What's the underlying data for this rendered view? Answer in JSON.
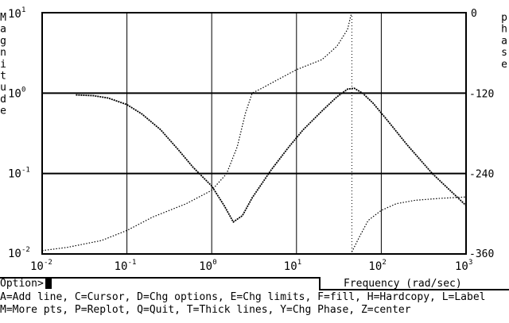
{
  "chart_data": {
    "type": "line",
    "x_scale": "log",
    "xlim": [
      0.01,
      1000
    ],
    "ylim_magnitude": [
      0.01,
      10
    ],
    "y_scale_magnitude": "log",
    "ylim_phase": [
      -360,
      0
    ],
    "xlabel": "Frequency (rad/sec)",
    "ylabel_left": "Magnitude",
    "ylabel_right": "phase",
    "x_ticks": [
      {
        "value": 0.01,
        "base": "10",
        "exp": "-2"
      },
      {
        "value": 0.1,
        "base": "10",
        "exp": "-1"
      },
      {
        "value": 1,
        "base": "10",
        "exp": "0"
      },
      {
        "value": 10,
        "base": "10",
        "exp": "1"
      },
      {
        "value": 100,
        "base": "10",
        "exp": "2"
      },
      {
        "value": 1000,
        "base": "10",
        "exp": "3"
      }
    ],
    "y_ticks_magnitude": [
      {
        "value": 10,
        "base": "10",
        "exp": "1"
      },
      {
        "value": 1,
        "base": "10",
        "exp": "0"
      },
      {
        "value": 0.1,
        "base": "10",
        "exp": "-1"
      },
      {
        "value": 0.01,
        "base": "10",
        "exp": "-2"
      }
    ],
    "y_ticks_phase": [
      "0",
      "-120",
      "-240",
      "-360"
    ],
    "grid": true,
    "reference_line_x": 45,
    "series": [
      {
        "style": "solid",
        "axis": "magnitude",
        "x": [
          0.025,
          0.04,
          0.06,
          0.1,
          0.15,
          0.25,
          0.4,
          0.6,
          1.0,
          1.4,
          1.8,
          2.3,
          3.0,
          5.0,
          8.0,
          12,
          20,
          30,
          40,
          48,
          60,
          80,
          120,
          200,
          400,
          1000
        ],
        "y": [
          0.95,
          0.93,
          0.87,
          0.72,
          0.55,
          0.35,
          0.2,
          0.12,
          0.07,
          0.04,
          0.025,
          0.03,
          0.05,
          0.11,
          0.21,
          0.35,
          0.6,
          0.9,
          1.12,
          1.15,
          1.0,
          0.75,
          0.45,
          0.23,
          0.1,
          0.04
        ]
      },
      {
        "style": "dotted",
        "axis": "phase",
        "x": [
          0.01,
          0.02,
          0.05,
          0.1,
          0.2,
          0.5,
          1.0,
          1.5,
          2.0,
          2.5,
          3.0,
          4.0,
          6.0,
          10,
          20,
          30,
          40,
          44
        ],
        "y": [
          -355,
          -350,
          -340,
          -325,
          -305,
          -285,
          -265,
          -240,
          -200,
          -150,
          -120,
          -112,
          -100,
          -85,
          -70,
          -50,
          -25,
          -3
        ]
      },
      {
        "style": "dotted",
        "axis": "phase",
        "x": [
          45,
          55,
          70,
          100,
          150,
          250,
          500,
          1000
        ],
        "y": [
          -357,
          -335,
          -310,
          -295,
          -285,
          -280,
          -277,
          -275
        ]
      }
    ]
  },
  "footer": {
    "prompt": "Option>",
    "help_line_1": "A=Add line, C=Cursor, D=Chg options, E=Chg limits, F=fill, H=Hardcopy, L=Label",
    "help_line_2": "M=More pts, P=Replot, Q=Quit, T=Thick lines, Y=Chg Phase, Z=center"
  }
}
